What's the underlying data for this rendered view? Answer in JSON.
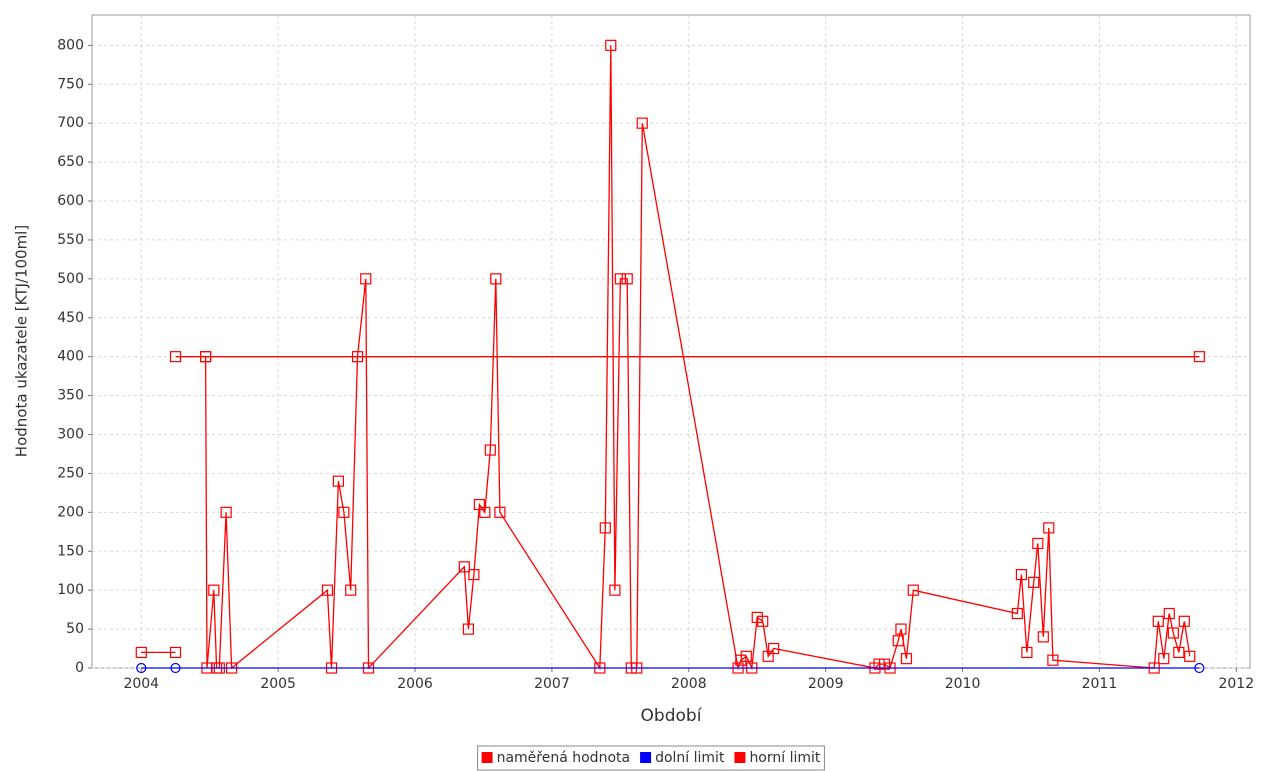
{
  "chart_data": {
    "type": "line",
    "x_label": "Období",
    "y_label": "Hodnota ukazatele [KTJ/100ml]",
    "xlim": [
      2003.64,
      2012.1
    ],
    "ylim": [
      0,
      839
    ],
    "xticks": [
      2004,
      2005,
      2006,
      2007,
      2008,
      2009,
      2010,
      2011,
      2012
    ],
    "yticks": [
      0,
      50,
      100,
      150,
      200,
      250,
      300,
      350,
      400,
      450,
      500,
      550,
      600,
      650,
      700,
      750,
      800
    ],
    "grid": true,
    "legend": "bottom",
    "series": [
      {
        "name": "naměřená hodnota",
        "color": "#ff0000",
        "marker": "square",
        "x": [
          2004.0,
          2004.25,
          2004.46,
          2004.47,
          2004.48,
          2004.53,
          2004.55,
          2004.57,
          2004.62,
          2004.66,
          2005.36,
          2005.39,
          2005.44,
          2005.48,
          2005.53,
          2005.58,
          2005.64,
          2005.66,
          2006.36,
          2006.39,
          2006.43,
          2006.47,
          2006.51,
          2006.55,
          2006.59,
          2006.62,
          2007.35,
          2007.39,
          2007.43,
          2007.46,
          2007.5,
          2007.55,
          2007.58,
          2007.62,
          2007.66,
          2008.36,
          2008.38,
          2008.42,
          2008.46,
          2008.5,
          2008.54,
          2008.58,
          2008.62,
          2009.36,
          2009.39,
          2009.43,
          2009.47,
          2009.53,
          2009.55,
          2009.59,
          2009.64,
          2010.4,
          2010.43,
          2010.47,
          2010.52,
          2010.55,
          2010.59,
          2010.63,
          2010.66,
          2011.4,
          2011.43,
          2011.47,
          2011.51,
          2011.54,
          2011.58,
          2011.62,
          2011.66
        ],
        "values": [
          20,
          20,
          null,
          400,
          0,
          100,
          0,
          0,
          200,
          0,
          100,
          0,
          240,
          200,
          100,
          400,
          500,
          0,
          130,
          50,
          120,
          210,
          200,
          280,
          500,
          200,
          0,
          180,
          800,
          100,
          500,
          500,
          0,
          0,
          700,
          0,
          10,
          15,
          0,
          65,
          60,
          15,
          25,
          0,
          5,
          5,
          0,
          35,
          50,
          12,
          100,
          70,
          120,
          20,
          110,
          160,
          40,
          180,
          10,
          0,
          60,
          12,
          70,
          45,
          20,
          60,
          15
        ]
      },
      {
        "name": "dolní limit",
        "color": "#0000ff",
        "marker": "circle",
        "x": [
          2004.0,
          2004.25,
          2011.73
        ],
        "values": [
          0,
          0,
          0
        ]
      },
      {
        "name": "horní limit",
        "color": "#ff0000",
        "marker": "square",
        "x": [
          2004.25,
          2004.47,
          2011.73
        ],
        "values": [
          400,
          400,
          400
        ]
      }
    ]
  }
}
